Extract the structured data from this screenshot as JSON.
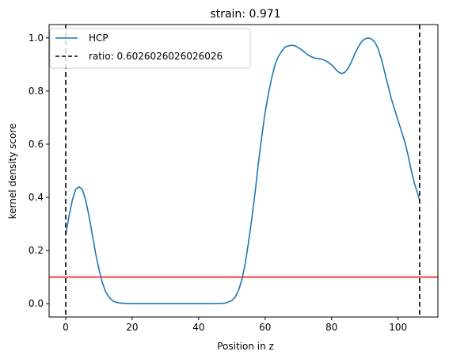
{
  "chart_data": {
    "type": "line",
    "title": "strain: 0.971",
    "xlabel": "Position in z",
    "ylabel": "kernel density score",
    "xlim": [
      -5,
      112
    ],
    "ylim": [
      -0.05,
      1.05
    ],
    "xticks": [
      0,
      20,
      40,
      60,
      80,
      100
    ],
    "yticks": [
      0.0,
      0.2,
      0.4,
      0.6,
      0.8,
      1.0
    ],
    "xtick_labels": [
      "0",
      "20",
      "40",
      "60",
      "80",
      "100"
    ],
    "ytick_labels": [
      "0.0",
      "0.2",
      "0.4",
      "0.6",
      "0.8",
      "1.0"
    ],
    "grid": false,
    "legend_position": "top-left",
    "series": [
      {
        "name": "HCP",
        "color": "#1f77b4",
        "style": "solid",
        "x": [
          0,
          1,
          2,
          3,
          4,
          5,
          6,
          7,
          8,
          9,
          10,
          11,
          12,
          13,
          14,
          15,
          16,
          17,
          18,
          20,
          25,
          30,
          35,
          40,
          45,
          48,
          50,
          51,
          52,
          53,
          54,
          55,
          56,
          57,
          58,
          59,
          60,
          61,
          62,
          63,
          64,
          65,
          66,
          67,
          68,
          69,
          70,
          71,
          72,
          73,
          74,
          75,
          76,
          77,
          78,
          79,
          80,
          81,
          82,
          83,
          84,
          85,
          86,
          87,
          88,
          89,
          90,
          91,
          92,
          93,
          94,
          95,
          96,
          97,
          98,
          99,
          100,
          101,
          102,
          103,
          104,
          105,
          106,
          106.5
        ],
        "y": [
          0.26,
          0.33,
          0.39,
          0.43,
          0.44,
          0.43,
          0.39,
          0.33,
          0.26,
          0.19,
          0.13,
          0.08,
          0.045,
          0.025,
          0.012,
          0.006,
          0.003,
          0.002,
          0.001,
          0.0,
          0.0,
          0.0,
          0.0,
          0.0,
          0.0,
          0.002,
          0.012,
          0.025,
          0.05,
          0.09,
          0.15,
          0.23,
          0.32,
          0.42,
          0.53,
          0.63,
          0.72,
          0.79,
          0.85,
          0.9,
          0.93,
          0.95,
          0.965,
          0.97,
          0.972,
          0.97,
          0.963,
          0.955,
          0.945,
          0.935,
          0.928,
          0.924,
          0.922,
          0.92,
          0.915,
          0.908,
          0.898,
          0.885,
          0.872,
          0.866,
          0.87,
          0.886,
          0.91,
          0.94,
          0.965,
          0.985,
          0.996,
          1.0,
          0.996,
          0.985,
          0.96,
          0.92,
          0.87,
          0.82,
          0.77,
          0.73,
          0.69,
          0.65,
          0.61,
          0.56,
          0.5,
          0.45,
          0.41,
          0.39
        ]
      }
    ],
    "vlines": [
      {
        "x": 0,
        "label": "ratio: 0.6026026026026026",
        "color": "#000000",
        "style": "dashed"
      },
      {
        "x": 106.5,
        "color": "#000000",
        "style": "dashed"
      }
    ],
    "hlines": [
      {
        "y": 0.1,
        "color": "#ff0000",
        "style": "solid"
      }
    ],
    "legend": [
      {
        "label": "HCP",
        "color": "#1f77b4",
        "style": "solid"
      },
      {
        "label": "ratio: 0.6026026026026026",
        "color": "#000000",
        "style": "dashed"
      }
    ]
  }
}
